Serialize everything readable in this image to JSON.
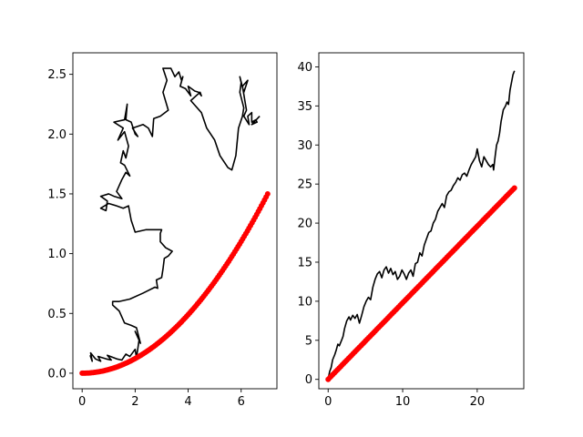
{
  "chart_data": [
    {
      "type": "line",
      "xlim": [
        -0.35,
        7.35
      ],
      "ylim": [
        -0.13,
        2.68
      ],
      "xticks": [
        0,
        2,
        4,
        6
      ],
      "yticks": [
        0.0,
        0.5,
        1.0,
        1.5,
        2.0,
        2.5
      ],
      "xtick_labels": [
        "0",
        "2",
        "4",
        "6"
      ],
      "ytick_labels": [
        "0.0",
        "0.5",
        "1.0",
        "1.5",
        "2.0",
        "2.5"
      ],
      "grid": false,
      "series": [
        {
          "style": "line",
          "color": "#000000",
          "points": [
            [
              0.3,
              0.15
            ],
            [
              0.38,
              0.1
            ],
            [
              0.32,
              0.17
            ],
            [
              0.5,
              0.12
            ],
            [
              0.7,
              0.1
            ],
            [
              0.6,
              0.14
            ],
            [
              0.9,
              0.12
            ],
            [
              1.1,
              0.11
            ],
            [
              0.95,
              0.15
            ],
            [
              1.3,
              0.12
            ],
            [
              1.5,
              0.11
            ],
            [
              1.65,
              0.16
            ],
            [
              1.8,
              0.14
            ],
            [
              2.0,
              0.2
            ],
            [
              2.05,
              0.13
            ],
            [
              2.15,
              0.28
            ],
            [
              2.0,
              0.35
            ],
            [
              2.1,
              0.3
            ],
            [
              2.2,
              0.25
            ],
            [
              2.05,
              0.38
            ],
            [
              1.85,
              0.4
            ],
            [
              1.6,
              0.42
            ],
            [
              1.4,
              0.52
            ],
            [
              1.15,
              0.57
            ],
            [
              1.15,
              0.6
            ],
            [
              1.4,
              0.6
            ],
            [
              1.8,
              0.62
            ],
            [
              2.3,
              0.67
            ],
            [
              2.75,
              0.72
            ],
            [
              2.85,
              0.71
            ],
            [
              2.8,
              0.78
            ],
            [
              3.0,
              0.8
            ],
            [
              3.05,
              0.87
            ],
            [
              3.1,
              0.96
            ],
            [
              3.25,
              0.98
            ],
            [
              3.4,
              1.02
            ],
            [
              3.15,
              1.05
            ],
            [
              2.95,
              1.1
            ],
            [
              2.95,
              1.17
            ],
            [
              3.0,
              1.2
            ],
            [
              2.7,
              1.2
            ],
            [
              2.4,
              1.2
            ],
            [
              2.0,
              1.18
            ],
            [
              1.85,
              1.28
            ],
            [
              1.75,
              1.4
            ],
            [
              1.55,
              1.38
            ],
            [
              1.3,
              1.4
            ],
            [
              1.0,
              1.42
            ],
            [
              0.7,
              1.38
            ],
            [
              0.9,
              1.36
            ],
            [
              0.95,
              1.44
            ],
            [
              0.7,
              1.48
            ],
            [
              1.0,
              1.5
            ],
            [
              1.2,
              1.48
            ],
            [
              1.5,
              1.46
            ],
            [
              1.3,
              1.52
            ],
            [
              1.5,
              1.62
            ],
            [
              1.65,
              1.68
            ],
            [
              1.8,
              1.65
            ],
            [
              1.6,
              1.74
            ],
            [
              1.45,
              1.76
            ],
            [
              1.55,
              1.86
            ],
            [
              1.65,
              1.8
            ],
            [
              1.75,
              1.9
            ],
            [
              1.6,
              2.02
            ],
            [
              1.35,
              1.95
            ],
            [
              1.55,
              2.05
            ],
            [
              1.2,
              2.1
            ],
            [
              1.6,
              2.12
            ],
            [
              1.7,
              2.25
            ],
            [
              1.65,
              2.12
            ],
            [
              1.85,
              2.1
            ],
            [
              2.0,
              2.0
            ],
            [
              2.1,
              1.98
            ],
            [
              1.9,
              2.05
            ],
            [
              2.3,
              2.08
            ],
            [
              2.5,
              2.05
            ],
            [
              2.65,
              1.98
            ],
            [
              2.7,
              2.13
            ],
            [
              2.95,
              2.15
            ],
            [
              3.25,
              2.2
            ],
            [
              3.05,
              2.35
            ],
            [
              3.2,
              2.45
            ],
            [
              3.05,
              2.55
            ],
            [
              3.35,
              2.55
            ],
            [
              3.5,
              2.48
            ],
            [
              3.65,
              2.52
            ],
            [
              3.75,
              2.45
            ],
            [
              3.8,
              2.48
            ],
            [
              3.7,
              2.4
            ],
            [
              3.9,
              2.38
            ],
            [
              4.1,
              2.32
            ],
            [
              4.0,
              2.4
            ],
            [
              4.25,
              2.36
            ],
            [
              4.4,
              2.35
            ],
            [
              4.5,
              2.32
            ],
            [
              4.45,
              2.35
            ],
            [
              4.1,
              2.28
            ],
            [
              4.5,
              2.18
            ],
            [
              4.7,
              2.05
            ],
            [
              5.0,
              1.95
            ],
            [
              5.2,
              1.82
            ],
            [
              5.5,
              1.72
            ],
            [
              5.65,
              1.7
            ],
            [
              5.75,
              1.78
            ],
            [
              5.8,
              1.82
            ],
            [
              5.9,
              2.05
            ],
            [
              6.05,
              2.15
            ],
            [
              6.1,
              2.22
            ],
            [
              5.95,
              2.35
            ],
            [
              6.0,
              2.43
            ],
            [
              5.95,
              2.48
            ],
            [
              6.1,
              2.35
            ],
            [
              6.25,
              2.45
            ],
            [
              6.05,
              2.4
            ],
            [
              6.2,
              2.2
            ],
            [
              6.1,
              2.15
            ],
            [
              6.3,
              2.08
            ],
            [
              6.25,
              2.15
            ],
            [
              6.4,
              2.18
            ],
            [
              6.4,
              2.1
            ],
            [
              6.55,
              2.12
            ],
            [
              6.6,
              2.1
            ],
            [
              6.4,
              2.08
            ],
            [
              6.7,
              2.15
            ]
          ]
        },
        {
          "style": "markers",
          "color": "#ff0000",
          "formula": "y = 0.0306 * x^2",
          "x_range": [
            0.0,
            7.0
          ],
          "n_points": 120
        }
      ]
    },
    {
      "type": "line",
      "xlim": [
        -1.25,
        26.25
      ],
      "ylim": [
        -1.2,
        41.8
      ],
      "xticks": [
        0,
        10,
        20
      ],
      "yticks": [
        0,
        5,
        10,
        15,
        20,
        25,
        30,
        35,
        40
      ],
      "xtick_labels": [
        "0",
        "10",
        "20"
      ],
      "ytick_labels": [
        "0",
        "5",
        "10",
        "15",
        "20",
        "25",
        "30",
        "35",
        "40"
      ],
      "grid": false,
      "series": [
        {
          "style": "line",
          "color": "#000000",
          "points": [
            [
              0,
              0
            ],
            [
              0.2,
              1.0
            ],
            [
              0.4,
              1.5
            ],
            [
              0.6,
              2.5
            ],
            [
              0.9,
              3.2
            ],
            [
              1.1,
              3.8
            ],
            [
              1.3,
              4.5
            ],
            [
              1.5,
              4.3
            ],
            [
              1.8,
              5.0
            ],
            [
              2.0,
              5.5
            ],
            [
              2.2,
              6.5
            ],
            [
              2.5,
              7.5
            ],
            [
              2.8,
              8.0
            ],
            [
              3.0,
              7.6
            ],
            [
              3.3,
              8.2
            ],
            [
              3.6,
              7.8
            ],
            [
              3.9,
              8.3
            ],
            [
              4.2,
              7.2
            ],
            [
              4.5,
              8.2
            ],
            [
              4.8,
              9.3
            ],
            [
              5.1,
              10.0
            ],
            [
              5.4,
              10.5
            ],
            [
              5.7,
              10.2
            ],
            [
              6.0,
              11.8
            ],
            [
              6.3,
              12.8
            ],
            [
              6.6,
              13.5
            ],
            [
              6.9,
              13.8
            ],
            [
              7.2,
              13.0
            ],
            [
              7.5,
              14.0
            ],
            [
              7.8,
              14.4
            ],
            [
              8.1,
              13.6
            ],
            [
              8.4,
              14.2
            ],
            [
              8.7,
              13.4
            ],
            [
              9.0,
              13.8
            ],
            [
              9.3,
              12.8
            ],
            [
              9.6,
              13.2
            ],
            [
              9.9,
              14.0
            ],
            [
              10.2,
              13.5
            ],
            [
              10.5,
              12.8
            ],
            [
              10.8,
              13.6
            ],
            [
              11.1,
              14.0
            ],
            [
              11.4,
              13.2
            ],
            [
              11.7,
              14.8
            ],
            [
              12.0,
              15.0
            ],
            [
              12.3,
              16.2
            ],
            [
              12.6,
              15.8
            ],
            [
              12.9,
              17.2
            ],
            [
              13.2,
              18.0
            ],
            [
              13.5,
              18.8
            ],
            [
              13.8,
              19.0
            ],
            [
              14.1,
              20.0
            ],
            [
              14.4,
              20.5
            ],
            [
              14.7,
              21.5
            ],
            [
              15.0,
              22.0
            ],
            [
              15.3,
              22.5
            ],
            [
              15.6,
              22.0
            ],
            [
              15.9,
              23.5
            ],
            [
              16.2,
              24.0
            ],
            [
              16.5,
              24.2
            ],
            [
              16.8,
              24.8
            ],
            [
              17.1,
              25.2
            ],
            [
              17.4,
              25.8
            ],
            [
              17.7,
              25.5
            ],
            [
              18.0,
              26.2
            ],
            [
              18.3,
              26.4
            ],
            [
              18.6,
              26.0
            ],
            [
              18.9,
              26.8
            ],
            [
              19.2,
              27.5
            ],
            [
              19.5,
              28.0
            ],
            [
              19.8,
              28.5
            ],
            [
              20.0,
              29.5
            ],
            [
              20.3,
              28.0
            ],
            [
              20.6,
              27.2
            ],
            [
              20.9,
              28.5
            ],
            [
              21.2,
              28.0
            ],
            [
              21.5,
              27.5
            ],
            [
              21.8,
              27.2
            ],
            [
              22.1,
              27.5
            ],
            [
              22.2,
              26.8
            ],
            [
              22.4,
              28.5
            ],
            [
              22.6,
              30.0
            ],
            [
              22.8,
              30.5
            ],
            [
              23.0,
              31.5
            ],
            [
              23.2,
              33.0
            ],
            [
              23.5,
              34.5
            ],
            [
              23.8,
              35.0
            ],
            [
              24.0,
              35.5
            ],
            [
              24.2,
              35.2
            ],
            [
              24.4,
              37.0
            ],
            [
              24.6,
              38.0
            ],
            [
              24.8,
              39.0
            ],
            [
              25.0,
              39.5
            ]
          ]
        },
        {
          "style": "markers",
          "color": "#ff0000",
          "formula": "y = 0.98 * x",
          "x_range": [
            0.0,
            25.0
          ],
          "n_points": 120
        }
      ]
    }
  ]
}
